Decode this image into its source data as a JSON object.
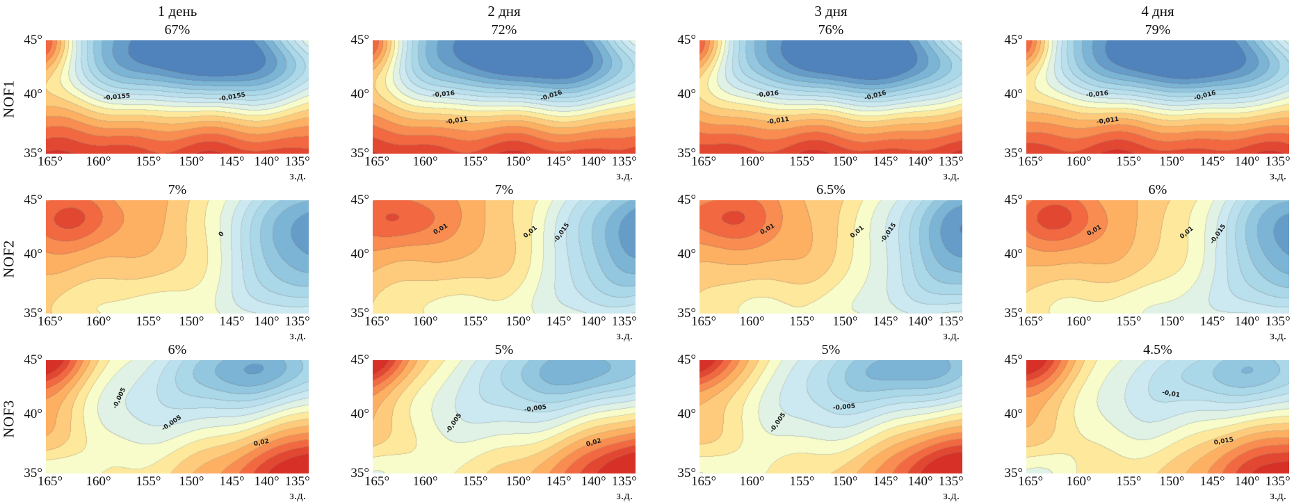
{
  "chart_data": {
    "type": "heatmap",
    "subtype": "filled-contour-map-grid",
    "grid": {
      "rows": 3,
      "cols": 4
    },
    "columns": [
      "1 день",
      "2 дня",
      "3 дня",
      "4 дня"
    ],
    "rows": [
      "NOF1",
      "NOF2",
      "NOF3"
    ],
    "x_axis": {
      "ticks": [
        "165°",
        "160°",
        "155°",
        "150°",
        "145°",
        "140°",
        "135°"
      ],
      "tick_pos_pct": [
        1.6,
        20,
        39,
        55.4,
        70.8,
        84,
        95.7
      ],
      "unit": "з.д.",
      "range_deg_west": [
        165,
        135
      ]
    },
    "y_axis": {
      "ticks": [
        "45°",
        "40°",
        "35°"
      ],
      "tick_pos_pct": [
        0,
        48,
        100
      ],
      "range_deg_north": [
        35,
        45
      ]
    },
    "palette": {
      "stops": [
        [
          0.0,
          "#4575b4"
        ],
        [
          0.14,
          "#74add1"
        ],
        [
          0.3,
          "#abd9e9"
        ],
        [
          0.44,
          "#cfe9f2"
        ],
        [
          0.52,
          "#e8f6e0"
        ],
        [
          0.58,
          "#ffffbf"
        ],
        [
          0.64,
          "#fee090"
        ],
        [
          0.76,
          "#fdae61"
        ],
        [
          0.88,
          "#f46d43"
        ],
        [
          1.0,
          "#d73027"
        ]
      ],
      "fmin": -0.046,
      "fmax": 0.03,
      "band_step": 0.005
    },
    "panels": [
      {
        "row": "NOF1",
        "col": "1 день",
        "percent": "67%",
        "labels": [
          [
            "-0,0155",
            0.27,
            0.5,
            -5
          ],
          [
            "-0,0155",
            0.71,
            0.5,
            -10
          ]
        ],
        "field": {
          "base": [
            0.028,
            -0.04
          ],
          "g": [
            [
              0.045,
              -0.03,
              1.02,
              0.1,
              0.22
            ],
            [
              -0.033,
              0.52,
              0.88,
              0.28,
              0.3
            ],
            [
              -0.022,
              0.8,
              0.72,
              0.22,
              0.3
            ],
            [
              -0.01,
              0.25,
              0.65,
              0.18,
              0.25
            ],
            [
              0.024,
              1.06,
              1.06,
              0.15,
              0.15
            ]
          ],
          "wave": 0.003,
          "wp": "b",
          "phase": 0.0
        }
      },
      {
        "row": "NOF1",
        "col": "2 дня",
        "percent": "72%",
        "labels": [
          [
            "-0,016",
            0.27,
            0.52,
            -5
          ],
          [
            "-0,016",
            0.68,
            0.51,
            -18
          ],
          [
            "-0,011",
            0.32,
            0.29,
            -8
          ]
        ],
        "field": {
          "base": [
            0.028,
            -0.04
          ],
          "g": [
            [
              0.045,
              -0.03,
              1.02,
              0.1,
              0.22
            ],
            [
              -0.035,
              0.52,
              0.88,
              0.28,
              0.3
            ],
            [
              -0.022,
              0.8,
              0.72,
              0.22,
              0.3
            ],
            [
              -0.01,
              0.25,
              0.65,
              0.18,
              0.25
            ],
            [
              0.024,
              1.06,
              1.06,
              0.15,
              0.15
            ]
          ],
          "wave": 0.003,
          "wp": "b",
          "phase": 1.1
        }
      },
      {
        "row": "NOF1",
        "col": "3 дня",
        "percent": "76%",
        "labels": [
          [
            "-0,016",
            0.26,
            0.52,
            -5
          ],
          [
            "-0,016",
            0.67,
            0.51,
            -15
          ],
          [
            "-0,011",
            0.3,
            0.29,
            -8
          ]
        ],
        "field": {
          "base": [
            0.028,
            -0.04
          ],
          "g": [
            [
              0.045,
              -0.03,
              1.02,
              0.1,
              0.22
            ],
            [
              -0.035,
              0.52,
              0.88,
              0.28,
              0.3
            ],
            [
              -0.022,
              0.8,
              0.72,
              0.22,
              0.3
            ],
            [
              -0.01,
              0.25,
              0.65,
              0.18,
              0.25
            ],
            [
              0.024,
              1.06,
              1.06,
              0.15,
              0.15
            ]
          ],
          "wave": 0.003,
          "wp": "b",
          "phase": 2.3
        }
      },
      {
        "row": "NOF1",
        "col": "4 дня",
        "percent": "79%",
        "labels": [
          [
            "-0,016",
            0.27,
            0.52,
            -5
          ],
          [
            "-0,016",
            0.68,
            0.51,
            -15
          ],
          [
            "-0,011",
            0.31,
            0.29,
            -8
          ]
        ],
        "field": {
          "base": [
            0.028,
            -0.04
          ],
          "g": [
            [
              0.045,
              -0.03,
              1.02,
              0.1,
              0.22
            ],
            [
              -0.035,
              0.52,
              0.88,
              0.28,
              0.3
            ],
            [
              -0.022,
              0.8,
              0.72,
              0.22,
              0.3
            ],
            [
              -0.01,
              0.25,
              0.65,
              0.18,
              0.25
            ],
            [
              0.024,
              1.06,
              1.06,
              0.15,
              0.15
            ]
          ],
          "wave": 0.003,
          "wp": "b",
          "phase": 3.4
        }
      },
      {
        "row": "NOF2",
        "col": "1 день",
        "percent": "7%",
        "labels": [
          [
            "0",
            0.67,
            0.7,
            -60
          ]
        ],
        "field": {
          "base": [
            0.013,
            -0.002
          ],
          "g": [
            [
              0.014,
              0.1,
              0.85,
              0.13,
              0.18
            ],
            [
              -0.05,
              1.05,
              0.8,
              0.26,
              0.38
            ],
            [
              -0.02,
              0.97,
              0.22,
              0.22,
              0.28
            ],
            [
              -0.014,
              0.5,
              -0.05,
              0.33,
              0.26
            ],
            [
              -0.006,
              0.1,
              0.1,
              0.22,
              0.25
            ]
          ],
          "wave": 0.0016,
          "wp": "u",
          "phase": 0.4
        }
      },
      {
        "row": "NOF2",
        "col": "2 дня",
        "percent": "7%",
        "labels": [
          [
            "0,01",
            0.26,
            0.74,
            -30
          ],
          [
            "0,01",
            0.6,
            0.72,
            -40
          ],
          [
            "-0,015",
            0.72,
            0.71,
            -55
          ]
        ],
        "field": {
          "base": [
            0.013,
            -0.002
          ],
          "g": [
            [
              0.014,
              0.1,
              0.85,
              0.13,
              0.18
            ],
            [
              -0.05,
              1.05,
              0.8,
              0.26,
              0.38
            ],
            [
              -0.02,
              0.97,
              0.22,
              0.22,
              0.28
            ],
            [
              -0.014,
              0.5,
              -0.05,
              0.33,
              0.26
            ],
            [
              -0.006,
              0.1,
              0.1,
              0.22,
              0.25
            ]
          ],
          "wave": 0.0016,
          "wp": "u",
          "phase": 1.6
        }
      },
      {
        "row": "NOF2",
        "col": "3 дня",
        "percent": "6.5%",
        "labels": [
          [
            "0,01",
            0.26,
            0.74,
            -30
          ],
          [
            "0,01",
            0.6,
            0.72,
            -40
          ],
          [
            "-0,015",
            0.72,
            0.71,
            -55
          ]
        ],
        "field": {
          "base": [
            0.013,
            -0.002
          ],
          "g": [
            [
              0.014,
              0.1,
              0.85,
              0.13,
              0.18
            ],
            [
              -0.05,
              1.05,
              0.8,
              0.26,
              0.38
            ],
            [
              -0.02,
              0.97,
              0.22,
              0.22,
              0.28
            ],
            [
              -0.014,
              0.5,
              -0.05,
              0.33,
              0.26
            ],
            [
              -0.006,
              0.1,
              0.1,
              0.22,
              0.25
            ]
          ],
          "wave": 0.0016,
          "wp": "u",
          "phase": 2.9
        }
      },
      {
        "row": "NOF2",
        "col": "4 дня",
        "percent": "6%",
        "labels": [
          [
            "0,01",
            0.26,
            0.73,
            -30
          ],
          [
            "0,01",
            0.61,
            0.71,
            -40
          ],
          [
            "-0,015",
            0.73,
            0.7,
            -55
          ]
        ],
        "field": {
          "base": [
            0.013,
            -0.002
          ],
          "g": [
            [
              0.014,
              0.1,
              0.85,
              0.13,
              0.18
            ],
            [
              -0.048,
              1.05,
              0.8,
              0.26,
              0.38
            ],
            [
              -0.02,
              0.97,
              0.22,
              0.22,
              0.28
            ],
            [
              -0.016,
              0.5,
              -0.05,
              0.33,
              0.26
            ],
            [
              -0.006,
              0.1,
              0.1,
              0.22,
              0.25
            ]
          ],
          "wave": 0.0016,
          "wp": "u",
          "phase": 4.1
        }
      },
      {
        "row": "NOF3",
        "col": "1 день",
        "percent": "6%",
        "labels": [
          [
            "-0,005",
            0.28,
            0.66,
            -65
          ],
          [
            "-0,005",
            0.48,
            0.44,
            -35
          ],
          [
            "0,02",
            0.82,
            0.27,
            -12
          ]
        ],
        "field": {
          "base": [
            0.002,
            0.0
          ],
          "g": [
            [
              0.04,
              -0.05,
              1.08,
              0.14,
              0.22
            ],
            [
              0.01,
              0.0,
              0.45,
              0.13,
              0.35
            ],
            [
              -0.035,
              0.82,
              0.95,
              0.26,
              0.25
            ],
            [
              -0.014,
              0.45,
              0.55,
              0.28,
              0.3
            ],
            [
              -0.012,
              0.0,
              0.0,
              0.13,
              0.16
            ],
            [
              0.038,
              1.06,
              -0.05,
              0.28,
              0.3
            ]
          ],
          "wave": 0.0018,
          "wp": "u",
          "phase": 0.8
        }
      },
      {
        "row": "NOF3",
        "col": "2 дня",
        "percent": "5%",
        "labels": [
          [
            "-0,005",
            0.31,
            0.44,
            -55
          ],
          [
            "-0,005",
            0.62,
            0.57,
            -8
          ],
          [
            "0,02",
            0.84,
            0.27,
            -15
          ]
        ],
        "field": {
          "base": [
            0.002,
            0.0
          ],
          "g": [
            [
              0.04,
              -0.05,
              1.08,
              0.14,
              0.22
            ],
            [
              0.01,
              0.0,
              0.45,
              0.13,
              0.35
            ],
            [
              -0.035,
              0.82,
              0.95,
              0.26,
              0.25
            ],
            [
              -0.014,
              0.45,
              0.55,
              0.28,
              0.3
            ],
            [
              -0.012,
              0.0,
              0.0,
              0.13,
              0.16
            ],
            [
              0.038,
              1.06,
              -0.05,
              0.28,
              0.3
            ]
          ],
          "wave": 0.0018,
          "wp": "u",
          "phase": 2.0
        }
      },
      {
        "row": "NOF3",
        "col": "3 дня",
        "percent": "5%",
        "labels": [
          [
            "-0,005",
            0.3,
            0.45,
            -55
          ],
          [
            "-0,005",
            0.55,
            0.58,
            -5
          ]
        ],
        "field": {
          "base": [
            0.002,
            0.0
          ],
          "g": [
            [
              0.04,
              -0.05,
              1.08,
              0.14,
              0.22
            ],
            [
              0.01,
              0.0,
              0.45,
              0.13,
              0.35
            ],
            [
              -0.035,
              0.82,
              0.95,
              0.26,
              0.25
            ],
            [
              -0.014,
              0.45,
              0.55,
              0.28,
              0.3
            ],
            [
              -0.012,
              0.0,
              0.0,
              0.13,
              0.16
            ],
            [
              0.038,
              1.06,
              -0.05,
              0.28,
              0.3
            ]
          ],
          "wave": 0.0018,
          "wp": "u",
          "phase": 3.2
        }
      },
      {
        "row": "NOF3",
        "col": "4 дня",
        "percent": "4.5%",
        "labels": [
          [
            "-0,01",
            0.55,
            0.7,
            10
          ],
          [
            "0,015",
            0.75,
            0.28,
            -10
          ]
        ],
        "field": {
          "base": [
            0.002,
            0.0
          ],
          "g": [
            [
              0.04,
              -0.05,
              1.08,
              0.14,
              0.22
            ],
            [
              0.01,
              0.0,
              0.45,
              0.13,
              0.35
            ],
            [
              -0.03,
              0.85,
              0.92,
              0.26,
              0.25
            ],
            [
              -0.011,
              0.45,
              0.55,
              0.28,
              0.3
            ],
            [
              -0.012,
              0.0,
              0.0,
              0.13,
              0.16
            ],
            [
              0.034,
              1.06,
              -0.05,
              0.28,
              0.3
            ]
          ],
          "wave": 0.0018,
          "wp": "u",
          "phase": 4.4
        }
      }
    ]
  }
}
